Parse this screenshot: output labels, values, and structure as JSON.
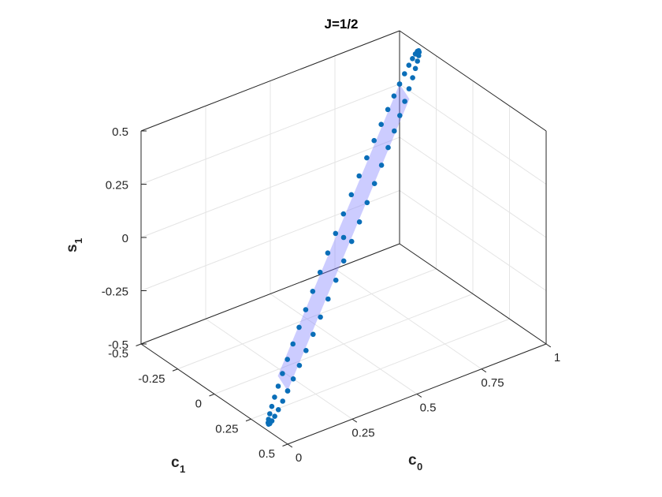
{
  "chart_data": {
    "type": "scatter",
    "title": "J=1/2",
    "xlabel": {
      "main": "c",
      "sub": "0"
    },
    "ylabel": {
      "main": "c",
      "sub": "1"
    },
    "zlabel": {
      "main": "s",
      "sub": "1"
    },
    "xlim": [
      0,
      1
    ],
    "ylim": [
      -0.5,
      0.5
    ],
    "zlim": [
      -0.5,
      0.5
    ],
    "xticks": [
      "0",
      "0.25",
      "0.5",
      "0.75",
      "1"
    ],
    "yticks": [
      "-0.5",
      "-0.25",
      "0",
      "0.25",
      "0.5"
    ],
    "zticks": [
      "-0.5",
      "-0.25",
      "0",
      "0.25",
      "0.5"
    ],
    "grid": true,
    "view": "3d",
    "plane": {
      "color": "#8080ff",
      "opacity": 0.4,
      "vertices": [
        [
          0,
          0.5,
          -0.25
        ],
        [
          0.5,
          0,
          0
        ],
        [
          1,
          -0.5,
          0.25
        ]
      ]
    },
    "marker_color": "#0a6eb8",
    "series": [
      {
        "type": "ellipse",
        "center": [
          0.5,
          0,
          0
        ],
        "u": [
          0.5,
          -0.5,
          0.25
        ],
        "v": [
          0.125,
          0.125,
          0.5
        ],
        "points": 60
      },
      {
        "type": "points",
        "values": [
          [
            0.5,
            0,
            0
          ],
          [
            0,
            0.5,
            -0.25
          ],
          [
            1,
            -0.5,
            0.25
          ]
        ]
      }
    ]
  }
}
